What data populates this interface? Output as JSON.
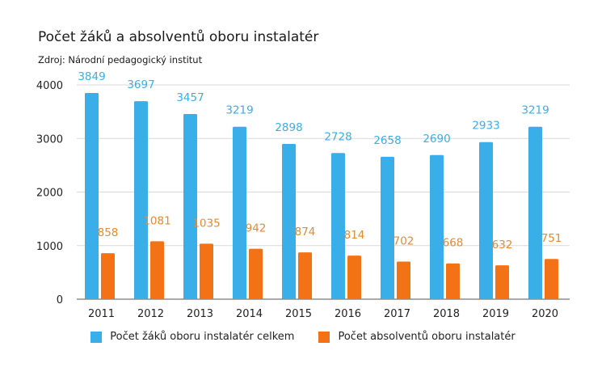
{
  "chart_data": {
    "type": "bar",
    "title": "Počet žáků a absolventů oboru instalatér",
    "subtitle": "Zdroj: Národní pedagogický institut",
    "categories": [
      "2011",
      "2012",
      "2013",
      "2014",
      "2015",
      "2016",
      "2017",
      "2018",
      "2019",
      "2020"
    ],
    "series": [
      {
        "name": "Počet žáků oboru instalatér celkem",
        "color": "#3aaee8",
        "values": [
          3849,
          3697,
          3457,
          3219,
          2898,
          2728,
          2658,
          2690,
          2933,
          3219
        ]
      },
      {
        "name": "Počet absolventů oboru instalatér",
        "color": "#f47216",
        "values": [
          858,
          1081,
          1035,
          942,
          874,
          814,
          702,
          668,
          632,
          751
        ]
      }
    ],
    "y_ticks": [
      0,
      1000,
      2000,
      3000,
      4000
    ],
    "ylim": [
      0,
      4000
    ],
    "grid": true,
    "legend_position": "bottom",
    "label_colors": {
      "series1": "#3aaee8",
      "series2": "#e8892e"
    }
  }
}
